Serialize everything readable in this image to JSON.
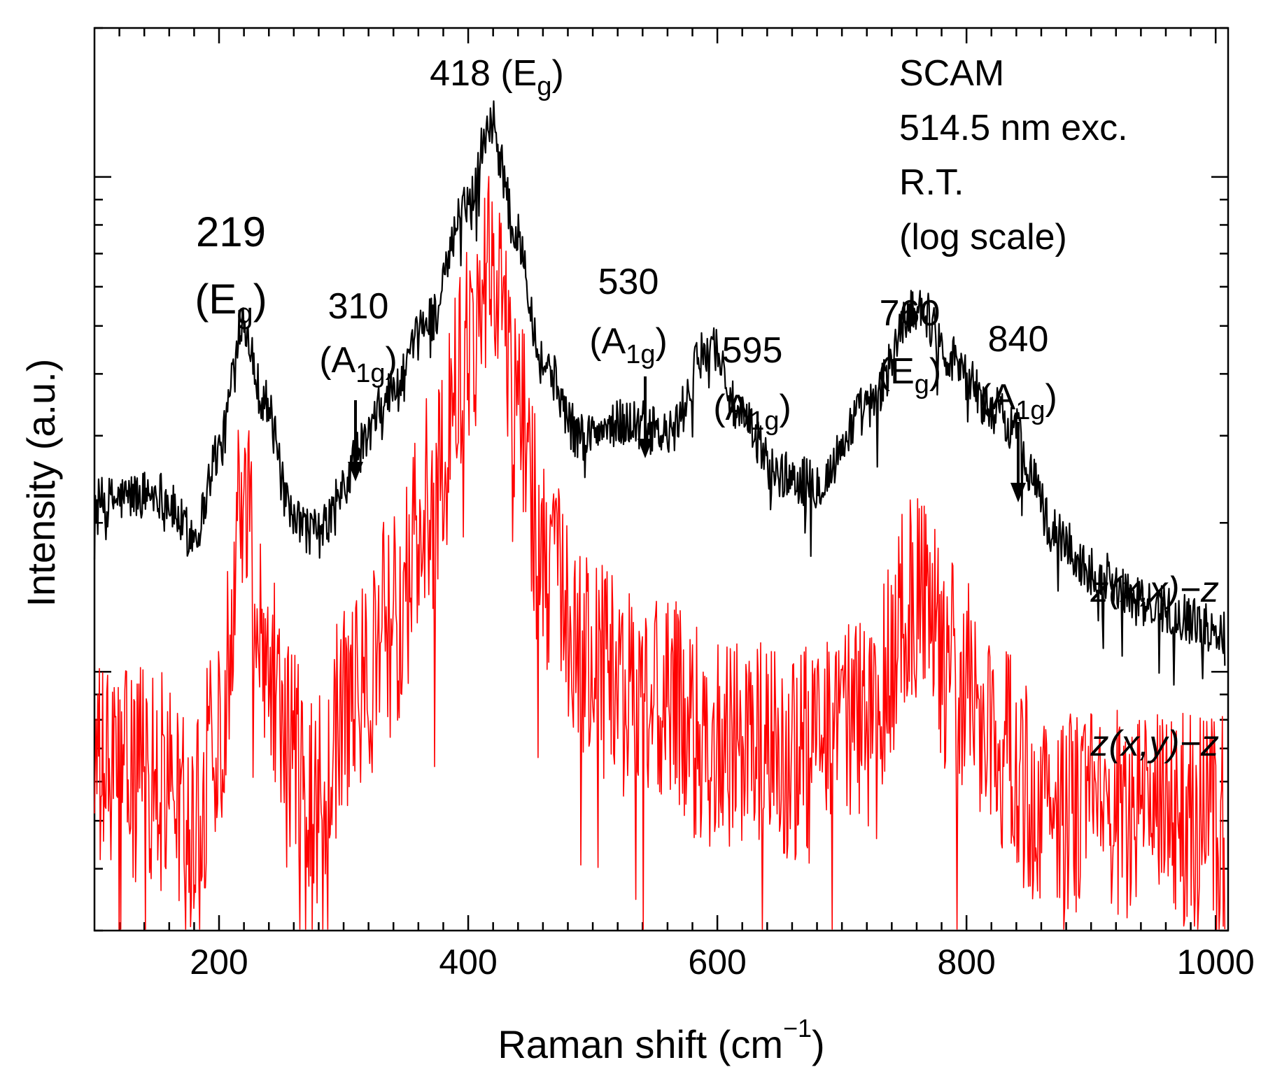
{
  "chart_data": {
    "type": "line",
    "xlabel": "Raman shift (cm",
    "xlabel_sup": "−1",
    "xlabel_close": ")",
    "ylabel": "Intensity (a.u.)",
    "xlim": [
      100,
      1010
    ],
    "y_scale": "log",
    "x_ticks": [
      200,
      400,
      600,
      800,
      1000
    ],
    "x_tick_labels": [
      "200",
      "400",
      "600",
      "800",
      "1000"
    ],
    "grid": false,
    "notes": [
      "SCAM",
      "514.5 nm exc.",
      "R.T.",
      "(log scale)"
    ],
    "series": [
      {
        "name": "z(x,x)−z",
        "color": "#000000",
        "x": [
          100,
          150,
          180,
          200,
          219,
          235,
          260,
          280,
          300,
          310,
          340,
          370,
          400,
          418,
          440,
          460,
          490,
          530,
          560,
          595,
          620,
          650,
          680,
          720,
          760,
          790,
          820,
          840,
          850,
          870,
          900,
          950,
          1010
        ],
        "y": [
          2.2,
          2.3,
          1.9,
          2.8,
          5.2,
          3.6,
          2.0,
          1.9,
          2.3,
          2.8,
          3.7,
          5.2,
          9.0,
          13.0,
          7.5,
          4.2,
          3.0,
          3.2,
          3.0,
          4.6,
          3.2,
          2.5,
          2.4,
          3.4,
          5.5,
          4.3,
          3.4,
          3.1,
          2.6,
          1.9,
          1.6,
          1.35,
          1.2
        ]
      },
      {
        "name": "z(x,y)−z",
        "color": "#ff0000",
        "x": [
          100,
          150,
          180,
          200,
          219,
          235,
          260,
          280,
          300,
          310,
          340,
          370,
          400,
          418,
          440,
          460,
          490,
          530,
          560,
          595,
          620,
          650,
          680,
          720,
          760,
          790,
          820,
          840,
          850,
          870,
          900,
          950,
          1010
        ],
        "y": [
          0.62,
          0.62,
          0.5,
          0.75,
          2.4,
          1.2,
          0.68,
          0.56,
          0.8,
          0.9,
          1.3,
          2.2,
          4.5,
          7.0,
          3.6,
          1.7,
          1.05,
          0.92,
          0.85,
          0.72,
          0.7,
          0.68,
          0.68,
          0.85,
          1.4,
          1.0,
          0.75,
          0.65,
          0.56,
          0.52,
          0.52,
          0.5,
          0.5
        ]
      }
    ],
    "annotations": [
      {
        "number": "219",
        "sym": "E",
        "sub": "g",
        "x": 219,
        "style": "big"
      },
      {
        "number": "310",
        "sym": "A",
        "sub": "1g",
        "x": 310,
        "arrow": true
      },
      {
        "prefix": "418 (",
        "sym": "E",
        "sub": "g",
        "x": 418,
        "style": "inline"
      },
      {
        "number": "530",
        "sym": "A",
        "sub": "1g",
        "x": 545,
        "arrow": true
      },
      {
        "number": "595",
        "sym": "A",
        "sub": "1g",
        "x": 600
      },
      {
        "number": "760",
        "sym": "E",
        "sub": "g",
        "x": 760
      },
      {
        "number": "840",
        "sym": "A",
        "sub": "1g",
        "x": 840,
        "arrow": true
      }
    ]
  }
}
